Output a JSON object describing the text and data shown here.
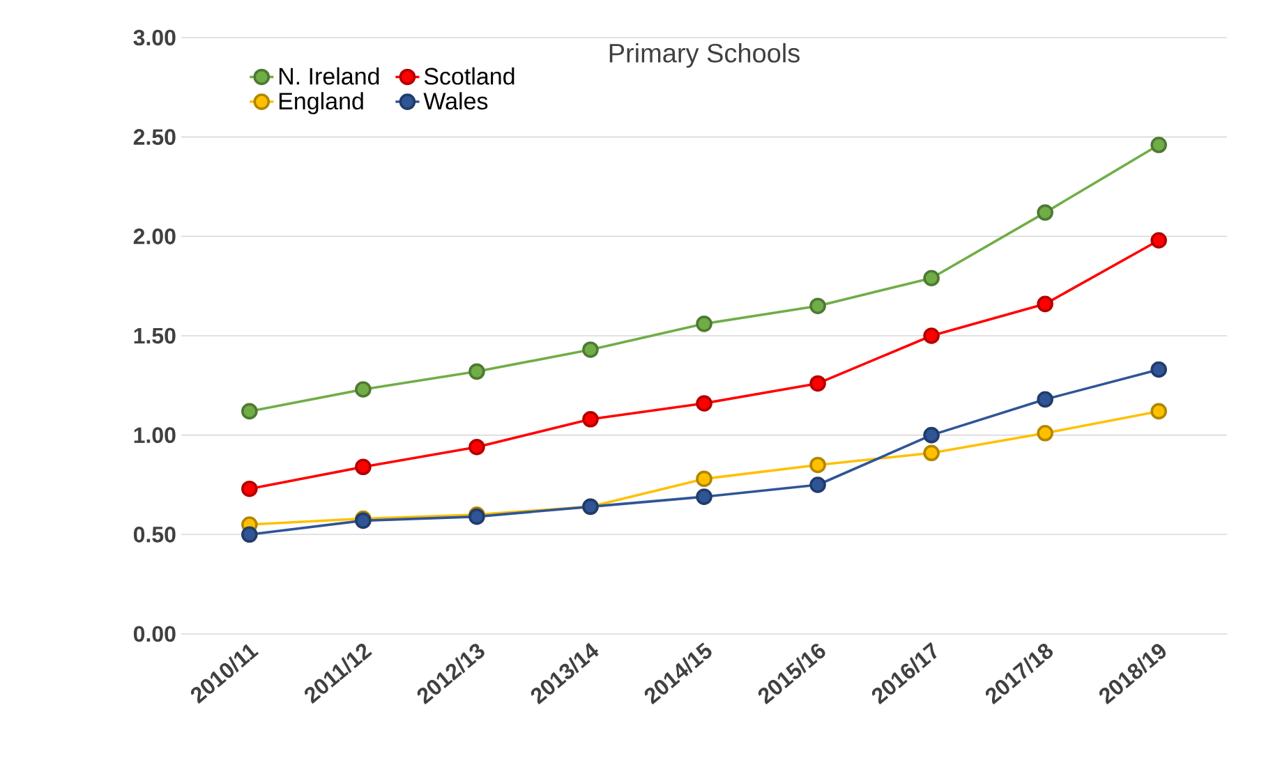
{
  "chart_data": {
    "type": "line",
    "title": "Primary Schools",
    "categories": [
      "2010/11",
      "2011/12",
      "2012/13",
      "2013/14",
      "2014/15",
      "2015/16",
      "2016/17",
      "2017/18",
      "2018/19"
    ],
    "series": [
      {
        "name": "N. Ireland",
        "color": "#70ad47",
        "values": [
          1.12,
          1.23,
          1.32,
          1.43,
          1.56,
          1.65,
          1.79,
          2.12,
          2.46
        ]
      },
      {
        "name": "Scotland",
        "color": "#ff0000",
        "values": [
          0.73,
          0.84,
          0.94,
          1.08,
          1.16,
          1.26,
          1.5,
          1.66,
          1.98
        ]
      },
      {
        "name": "England",
        "color": "#ffc000",
        "values": [
          0.55,
          0.58,
          0.6,
          0.64,
          0.78,
          0.85,
          0.91,
          1.01,
          1.12
        ]
      },
      {
        "name": "Wales",
        "color": "#2f5597",
        "values": [
          0.5,
          0.57,
          0.59,
          0.64,
          0.69,
          0.75,
          1.0,
          1.18,
          1.33
        ]
      }
    ],
    "ylim": [
      0,
      3
    ],
    "yticks": [
      {
        "value": 0,
        "label": "0.00"
      },
      {
        "value": 0.5,
        "label": "0.50"
      },
      {
        "value": 1,
        "label": "1.00"
      },
      {
        "value": 1.5,
        "label": "1.50"
      },
      {
        "value": 2,
        "label": "2.00"
      },
      {
        "value": 2.5,
        "label": "2.50"
      },
      {
        "value": 3,
        "label": "3.00"
      }
    ],
    "grid": "y",
    "legend": "top left",
    "marker": "circle",
    "line_style": "solid"
  }
}
